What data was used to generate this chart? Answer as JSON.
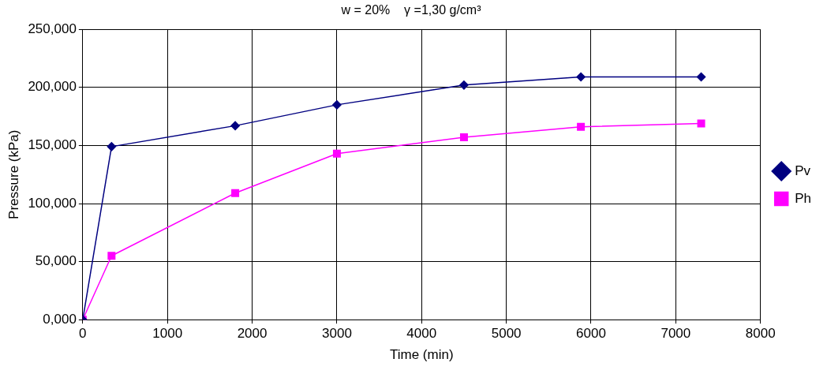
{
  "chart_data": {
    "type": "line",
    "title": "w = 20%    γ =1,30 g/cm³",
    "xlabel": "Time (min)",
    "ylabel": "Pressure (kPa)",
    "x": [
      0,
      340,
      1800,
      3000,
      4500,
      5880,
      7300
    ],
    "series": [
      {
        "name": "Pv",
        "color": "#000080",
        "marker": "diamond",
        "values": [
          0,
          149,
          167,
          185,
          202,
          209,
          209
        ]
      },
      {
        "name": "Ph",
        "color": "#ff00ff",
        "marker": "square",
        "values": [
          0,
          55,
          109,
          143,
          157,
          166,
          169
        ]
      }
    ],
    "xlim": [
      0,
      8000
    ],
    "xticks": [
      0,
      1000,
      2000,
      3000,
      4000,
      5000,
      6000,
      7000,
      8000
    ],
    "ylim": [
      0,
      250
    ],
    "yticks": [
      {
        "value": 0,
        "label": "0,000"
      },
      {
        "value": 50,
        "label": "50,000"
      },
      {
        "value": 100,
        "label": "100,000"
      },
      {
        "value": 150,
        "label": "150,000"
      },
      {
        "value": 200,
        "label": "200,000"
      },
      {
        "value": 250,
        "label": "250,000"
      }
    ],
    "grid": true,
    "legend": "right",
    "line_style": "solid"
  }
}
